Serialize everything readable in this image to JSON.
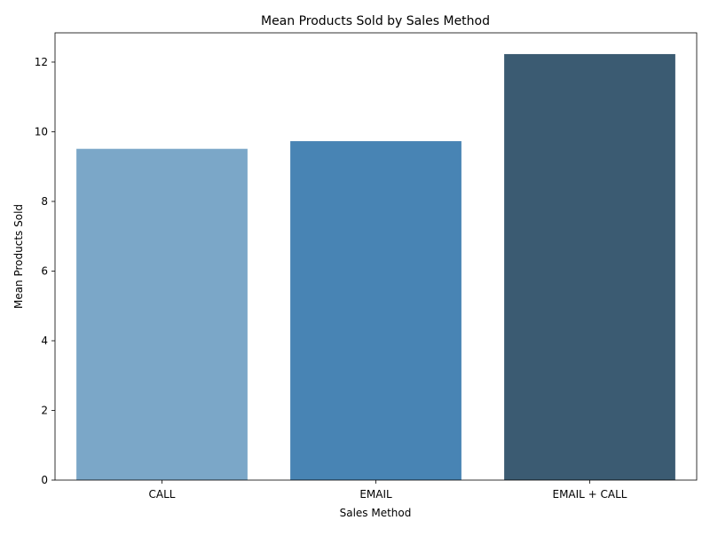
{
  "chart_data": {
    "type": "bar",
    "title": "Mean Products Sold by Sales Method",
    "xlabel": "Sales Method",
    "ylabel": "Mean Products Sold",
    "categories": [
      "CALL",
      "EMAIL",
      "EMAIL + CALL"
    ],
    "values": [
      9.51,
      9.73,
      12.23
    ],
    "ylim": [
      0,
      12.84
    ],
    "yticks": [
      0,
      2,
      4,
      6,
      8,
      10,
      12
    ],
    "grid": false,
    "legend": "none",
    "colors": [
      "#7ba7c8",
      "#4884b4",
      "#3b5b72"
    ],
    "axis_color": "#000000"
  }
}
